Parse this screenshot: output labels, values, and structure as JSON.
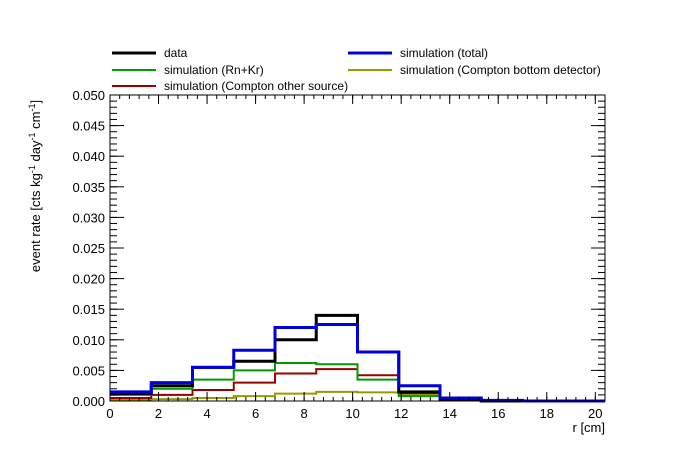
{
  "chart_data": {
    "type": "step",
    "xlabel": "r [cm]",
    "ylabel_parts": [
      {
        "t": "event rate [cts kg",
        "sup": false
      },
      {
        "t": "-1",
        "sup": true
      },
      {
        "t": " day",
        "sup": false
      },
      {
        "t": "-1",
        "sup": true
      },
      {
        "t": " cm",
        "sup": false
      },
      {
        "t": "-1",
        "sup": true
      },
      {
        "t": "]",
        "sup": false
      }
    ],
    "xlim": [
      0,
      20.4
    ],
    "ylim": [
      0,
      0.05
    ],
    "x_ticks": [
      0,
      2,
      4,
      6,
      8,
      10,
      12,
      14,
      16,
      18,
      20
    ],
    "x_tick_labels": [
      "0",
      "2",
      "4",
      "6",
      "8",
      "10",
      "12",
      "14",
      "16",
      "18",
      "20"
    ],
    "y_ticks": [
      0,
      0.005,
      0.01,
      0.015,
      0.02,
      0.025,
      0.03,
      0.035,
      0.04,
      0.045,
      0.05
    ],
    "y_tick_labels": [
      "0.000",
      "0.005",
      "0.010",
      "0.015",
      "0.020",
      "0.025",
      "0.030",
      "0.035",
      "0.040",
      "0.045",
      "0.050"
    ],
    "bin_edges": [
      0,
      1.7,
      3.4,
      5.1,
      6.8,
      8.5,
      10.2,
      11.9,
      13.6,
      15.3,
      17.0,
      18.7,
      20.4
    ],
    "series": [
      {
        "name": "simulation (Compton bottom detector)",
        "color": "#999900",
        "width": 2,
        "values": [
          0.0002,
          0.0003,
          0.0005,
          0.0008,
          0.0012,
          0.0015,
          0.0014,
          0.001,
          0.0004,
          0.0001,
          0.0,
          0.0
        ]
      },
      {
        "name": "simulation (Compton other source)",
        "color": "#990000",
        "width": 2,
        "values": [
          0.0005,
          0.001,
          0.0018,
          0.003,
          0.0045,
          0.0052,
          0.0042,
          0.0013,
          0.0003,
          0.0001,
          0.0,
          0.0
        ]
      },
      {
        "name": "simulation (Rn+Kr)",
        "color": "#009900",
        "width": 2,
        "values": [
          0.001,
          0.002,
          0.0035,
          0.005,
          0.0062,
          0.006,
          0.0035,
          0.0008,
          0.0002,
          0.0,
          0.0,
          0.0
        ]
      },
      {
        "name": "data",
        "color": "#000000",
        "width": 3,
        "values": [
          0.0012,
          0.0025,
          0.0055,
          0.0065,
          0.01,
          0.014,
          0.008,
          0.0015,
          0.0002,
          0.0,
          0.0,
          0.0
        ]
      },
      {
        "name": "simulation (total)",
        "color": "#0000dd",
        "width": 3,
        "values": [
          0.0015,
          0.003,
          0.0055,
          0.0083,
          0.012,
          0.0125,
          0.008,
          0.0025,
          0.0005,
          0.0001,
          0.0,
          0.0
        ]
      }
    ],
    "legend": [
      {
        "label": "data",
        "color": "#000000",
        "width": 3
      },
      {
        "label": "simulation (total)",
        "color": "#0000dd",
        "width": 3
      },
      {
        "label": "simulation (Rn+Kr)",
        "color": "#009900",
        "width": 2
      },
      {
        "label": "simulation (Compton bottom detector)",
        "color": "#999900",
        "width": 2
      },
      {
        "label": "simulation (Compton other source)",
        "color": "#990000",
        "width": 2
      }
    ]
  }
}
